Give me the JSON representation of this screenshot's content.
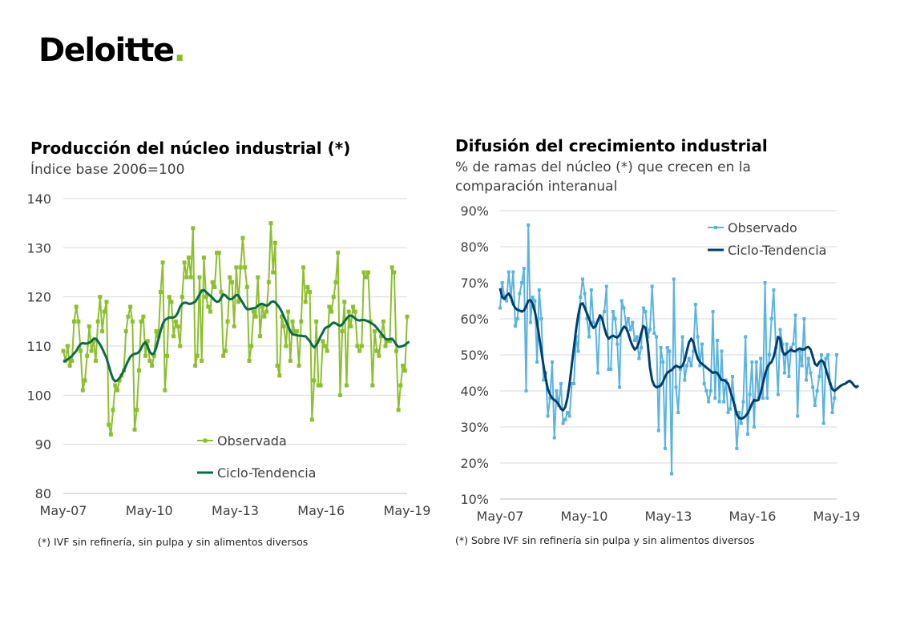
{
  "logo": {
    "text": "Deloitte",
    "dot": ".",
    "dot_color": "#86bc25"
  },
  "left": {
    "title": "Producción del núcleo industrial (*)",
    "subtitle": "Índice base 2006=100",
    "footnote": "(*) IVF sin refinería, sin pulpa y sin alimentos diversos"
  },
  "right": {
    "title": "Difusión del crecimiento industrial",
    "subtitle_line1": "% de ramas del núcleo (*) que crecen en la",
    "subtitle_line2": "comparación interanual",
    "footnote": "(*) Sobre IVF sin refinería sin pulpa y sin alimentos diversos"
  },
  "chart_data": [
    {
      "type": "line",
      "title": "Producción del núcleo industrial (*)",
      "subtitle": "Índice base 2006=100",
      "x_range": [
        "2007-05",
        "2019-05"
      ],
      "x_ticks": [
        "May-07",
        "May-10",
        "May-13",
        "May-16",
        "May-19"
      ],
      "ylim": [
        80,
        140
      ],
      "y_ticks": [
        "80",
        "90",
        "100",
        "110",
        "120",
        "130",
        "140"
      ],
      "grid": true,
      "legend_position": "bottom-center",
      "series_colors": [
        "#8dbf2e",
        "#0b6b45"
      ],
      "series": [
        {
          "name": "Observada",
          "values": [
            109,
            107,
            110,
            106,
            107,
            115,
            118,
            115,
            109,
            101,
            103,
            108,
            114,
            109,
            111,
            107,
            115,
            120,
            113,
            117,
            119,
            94,
            92,
            97,
            102,
            101,
            103,
            104,
            105,
            113,
            116,
            118,
            115,
            93,
            97,
            105,
            115,
            116,
            108,
            111,
            107,
            106,
            108,
            113,
            112,
            121,
            127,
            101,
            108,
            120,
            119,
            112,
            115,
            114,
            110,
            120,
            127,
            124,
            128,
            124,
            134,
            106,
            108,
            124,
            107,
            128,
            120,
            118,
            117,
            123,
            122,
            129,
            129,
            121,
            108,
            109,
            115,
            124,
            123,
            114,
            126,
            119,
            126,
            132,
            126,
            122,
            107,
            110,
            117,
            116,
            124,
            112,
            118,
            116,
            117,
            123,
            135,
            125,
            131,
            106,
            104,
            116,
            114,
            110,
            117,
            107,
            115,
            113,
            113,
            106,
            115,
            126,
            119,
            122,
            121,
            95,
            103,
            115,
            102,
            102,
            111,
            110,
            109,
            118,
            117,
            120,
            123,
            129,
            100,
            113,
            119,
            102,
            117,
            114,
            118,
            117,
            110,
            109,
            110,
            125,
            124,
            125,
            115,
            102,
            113,
            109,
            108,
            112,
            115,
            110,
            111,
            111,
            126,
            125,
            109,
            97,
            102,
            106,
            105,
            116
          ]
        },
        {
          "name": "Ciclo-Tendencia",
          "values": [
            106.8,
            107.0,
            107.3,
            107.6,
            108.0,
            108.5,
            109.0,
            109.8,
            110.4,
            110.6,
            110.5,
            110.5,
            110.7,
            111.0,
            111.5,
            111.5,
            111.0,
            110.3,
            109.5,
            108.5,
            107.5,
            106.0,
            104.5,
            103.3,
            102.8,
            103.0,
            103.5,
            104.2,
            105.0,
            106.0,
            107.0,
            107.8,
            108.2,
            108.4,
            108.5,
            108.8,
            109.5,
            110.4,
            110.8,
            109.9,
            108.8,
            108.3,
            108.5,
            109.7,
            111.4,
            113.1,
            114.5,
            115.3,
            115.6,
            115.8,
            115.8,
            115.8,
            116.1,
            116.8,
            118.0,
            118.6,
            118.8,
            118.8,
            118.6,
            118.6,
            118.8,
            119.0,
            119.7,
            120.5,
            121.3,
            121.4,
            121.0,
            120.6,
            120.2,
            119.8,
            119.3,
            119.0,
            119.1,
            119.8,
            120.5,
            120.3,
            119.8,
            119.5,
            119.6,
            120.0,
            120.4,
            120.3,
            119.5,
            118.8,
            118.0,
            117.5,
            117.5,
            117.6,
            117.7,
            117.8,
            118.2,
            118.5,
            118.6,
            118.4,
            118.2,
            118.4,
            118.9,
            119.1,
            118.9,
            118.4,
            117.8,
            117.0,
            116.0,
            115.0,
            114.0,
            113.0,
            112.4,
            112.3,
            112.2,
            112.1,
            112.1,
            112.0,
            112.0,
            111.5,
            111.0,
            110.2,
            109.7,
            110.2,
            111.0,
            112.0,
            112.8,
            113.6,
            113.9,
            114.0,
            114.5,
            114.8,
            114.6,
            114.3,
            114.1,
            114.4,
            115.0,
            115.6,
            116.1,
            116.2,
            116.0,
            115.6,
            115.3,
            115.2,
            115.3,
            115.3,
            115.2,
            115.0,
            114.8,
            114.5,
            114.2,
            113.7,
            113.1,
            112.6,
            112.0,
            111.5,
            111.3,
            111.4,
            111.5,
            111.0,
            110.3,
            109.8,
            109.9,
            110.0,
            110.2,
            110.6,
            110.9
          ]
        }
      ]
    },
    {
      "type": "line",
      "title": "Difusión del crecimiento industrial",
      "subtitle": "% de ramas del núcleo (*) que crecen en la comparación interanual",
      "x_range": [
        "2007-05",
        "2019-05"
      ],
      "x_ticks": [
        "May-07",
        "May-10",
        "May-13",
        "May-16",
        "May-19"
      ],
      "ylim": [
        10,
        90
      ],
      "y_ticks": [
        "10%",
        "20%",
        "30%",
        "40%",
        "50%",
        "60%",
        "70%",
        "80%",
        "90%"
      ],
      "grid": true,
      "legend_position": "top-right",
      "series_colors": [
        "#5bb3e0",
        "#003f6e"
      ],
      "series": [
        {
          "name": "Observado",
          "values": [
            63,
            70,
            66,
            65,
            73,
            66,
            73,
            58,
            60,
            67,
            70,
            74,
            40,
            86,
            59,
            66,
            65,
            48,
            68,
            60,
            43,
            45,
            33,
            38,
            48,
            27,
            40,
            36,
            42,
            31,
            32,
            34,
            33,
            42,
            42,
            55,
            51,
            66,
            71,
            67,
            60,
            55,
            68,
            59,
            58,
            45,
            60,
            60,
            62,
            69,
            46,
            46,
            62,
            60,
            53,
            41,
            65,
            63,
            58,
            60,
            57,
            59,
            54,
            55,
            49,
            52,
            63,
            62,
            55,
            57,
            69,
            56,
            55,
            29,
            52,
            48,
            24,
            52,
            51,
            17,
            71,
            41,
            34,
            46,
            55,
            43,
            47,
            49,
            47,
            51,
            64,
            55,
            47,
            53,
            42,
            40,
            37,
            40,
            62,
            38,
            54,
            37,
            51,
            37,
            43,
            34,
            35,
            44,
            36,
            24,
            34,
            31,
            37,
            55,
            28,
            39,
            48,
            30,
            48,
            38,
            49,
            38,
            70,
            38,
            50,
            60,
            68,
            52,
            39,
            57,
            53,
            45,
            53,
            44,
            52,
            53,
            61,
            33,
            51,
            47,
            60,
            43,
            49,
            45,
            41,
            36,
            40,
            44,
            50,
            31,
            49,
            50,
            42,
            34,
            38,
            50
          ]
        },
        {
          "name": "Ciclo-Tendencia",
          "values": [
            68.5,
            66.0,
            65.5,
            66.5,
            67.0,
            66.0,
            64.0,
            63.0,
            62.5,
            62.3,
            62.0,
            62.3,
            63.5,
            65.0,
            65.2,
            64.2,
            62.0,
            59.0,
            55.0,
            51.0,
            47.0,
            43.5,
            40.5,
            39.0,
            38.0,
            37.5,
            37.0,
            36.2,
            35.0,
            34.6,
            35.5,
            38.0,
            42.0,
            47.0,
            52.0,
            57.0,
            61.0,
            64.0,
            64.3,
            63.0,
            61.5,
            60.0,
            58.5,
            57.5,
            58.0,
            59.5,
            61.0,
            60.0,
            57.5,
            55.5,
            54.5,
            55.0,
            55.3,
            55.0,
            54.8,
            55.5,
            56.8,
            57.8,
            57.5,
            56.0,
            54.0,
            52.5,
            51.5,
            52.0,
            53.5,
            56.0,
            58.0,
            57.5,
            53.0,
            46.5,
            43.0,
            41.5,
            41.0,
            41.2,
            41.5,
            42.5,
            44.0,
            45.0,
            45.5,
            45.8,
            46.5,
            47.0,
            46.7,
            46.5,
            47.0,
            48.5,
            51.0,
            53.5,
            54.5,
            53.5,
            51.0,
            49.0,
            48.0,
            47.5,
            47.0,
            46.5,
            46.0,
            45.5,
            45.0,
            45.2,
            45.0,
            44.0,
            43.0,
            43.0,
            42.6,
            42.0,
            40.0,
            38.0,
            36.0,
            33.5,
            32.5,
            32.3,
            32.5,
            33.0,
            33.8,
            35.0,
            36.5,
            37.5,
            37.3,
            37.5,
            39.5,
            42.0,
            44.5,
            46.5,
            47.5,
            48.0,
            49.5,
            52.0,
            55.0,
            54.5,
            51.0,
            50.0,
            50.5,
            51.0,
            51.5,
            51.0,
            51.0,
            51.5,
            51.8,
            51.5,
            51.5,
            52.0,
            52.2,
            51.5,
            49.5,
            47.5,
            47.0,
            48.0,
            48.5,
            48.0,
            46.0,
            44.0,
            42.0,
            40.5,
            40.0,
            40.5,
            41.0,
            41.5,
            41.8,
            42.0,
            42.5,
            42.8,
            42.3,
            41.5,
            41.0,
            41.5
          ]
        }
      ]
    }
  ]
}
